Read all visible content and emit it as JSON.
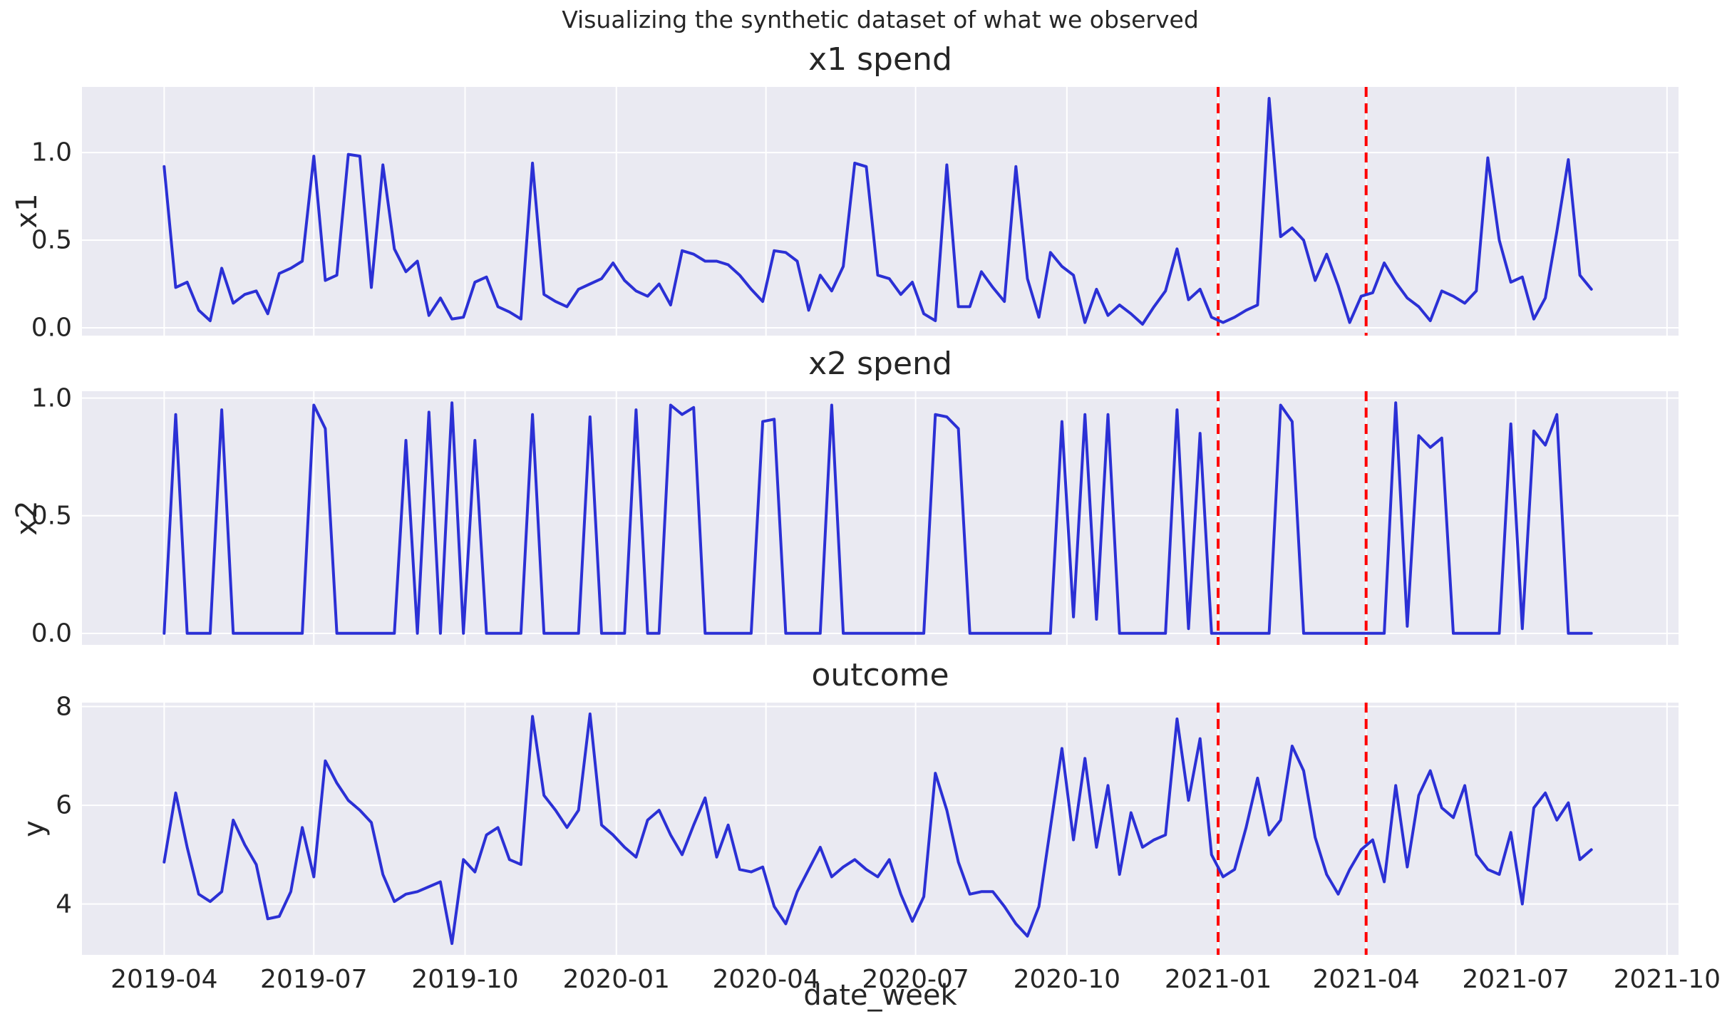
{
  "figure": {
    "suptitle": "Visualizing the synthetic dataset of what we observed"
  },
  "style": {
    "axes_background": "#EAEAF2",
    "grid_color": "#FFFFFF",
    "series_color": "#2B30D5",
    "vline_color": "#FF0000",
    "text_color": "#262626"
  },
  "x_axis": {
    "label": "date_week",
    "start_date": "2019-04-01",
    "interval_days": 7,
    "xlim": [
      "2019-02-10",
      "2021-10-08"
    ],
    "ticks": [
      {
        "date": "2019-04-01",
        "label": "2019-04"
      },
      {
        "date": "2019-07-01",
        "label": "2019-07"
      },
      {
        "date": "2019-10-01",
        "label": "2019-10"
      },
      {
        "date": "2020-01-01",
        "label": "2020-01"
      },
      {
        "date": "2020-04-01",
        "label": "2020-04"
      },
      {
        "date": "2020-07-01",
        "label": "2020-07"
      },
      {
        "date": "2020-10-01",
        "label": "2020-10"
      },
      {
        "date": "2021-01-01",
        "label": "2021-01"
      },
      {
        "date": "2021-04-01",
        "label": "2021-04"
      },
      {
        "date": "2021-07-01",
        "label": "2021-07"
      },
      {
        "date": "2021-10-01",
        "label": "2021-10"
      }
    ]
  },
  "annotations": {
    "vlines": [
      {
        "date": "2021-01-01",
        "style": "dashed"
      },
      {
        "date": "2021-04-01",
        "style": "dashed"
      }
    ]
  },
  "chart_data": [
    {
      "type": "line",
      "title": "x1 spend",
      "ylabel": "x1",
      "ylim": [
        -0.045,
        1.375
      ],
      "yticks": [
        {
          "v": 0.0,
          "label": "0.0"
        },
        {
          "v": 0.5,
          "label": "0.5"
        },
        {
          "v": 1.0,
          "label": "1.0"
        }
      ],
      "x_weekly_start": "2019-04-01",
      "values": [
        0.92,
        0.23,
        0.26,
        0.1,
        0.04,
        0.34,
        0.14,
        0.19,
        0.21,
        0.08,
        0.31,
        0.34,
        0.38,
        0.98,
        0.27,
        0.3,
        0.99,
        0.98,
        0.23,
        0.93,
        0.45,
        0.32,
        0.38,
        0.07,
        0.17,
        0.05,
        0.06,
        0.26,
        0.29,
        0.12,
        0.09,
        0.05,
        0.94,
        0.19,
        0.15,
        0.12,
        0.22,
        0.25,
        0.28,
        0.37,
        0.27,
        0.21,
        0.18,
        0.25,
        0.13,
        0.44,
        0.42,
        0.38,
        0.38,
        0.36,
        0.3,
        0.22,
        0.15,
        0.44,
        0.43,
        0.38,
        0.1,
        0.3,
        0.21,
        0.35,
        0.94,
        0.92,
        0.3,
        0.28,
        0.19,
        0.26,
        0.08,
        0.04,
        0.93,
        0.12,
        0.12,
        0.32,
        0.23,
        0.15,
        0.92,
        0.28,
        0.06,
        0.43,
        0.35,
        0.3,
        0.03,
        0.22,
        0.07,
        0.13,
        0.08,
        0.02,
        0.12,
        0.21,
        0.45,
        0.16,
        0.22,
        0.06,
        0.03,
        0.06,
        0.1,
        0.13,
        1.31,
        0.52,
        0.57,
        0.5,
        0.27,
        0.42,
        0.24,
        0.03,
        0.18,
        0.2,
        0.37,
        0.26,
        0.17,
        0.12,
        0.04,
        0.21,
        0.18,
        0.14,
        0.21,
        0.97,
        0.5,
        0.26,
        0.29,
        0.05,
        0.17,
        0.55,
        0.96,
        0.3,
        0.22
      ]
    },
    {
      "type": "line",
      "title": "x2 spend",
      "ylabel": "x2",
      "ylim": [
        -0.049,
        1.029
      ],
      "yticks": [
        {
          "v": 0.0,
          "label": "0.0"
        },
        {
          "v": 0.5,
          "label": "0.5"
        },
        {
          "v": 1.0,
          "label": "1.0"
        }
      ],
      "x_weekly_start": "2019-04-01",
      "values": [
        0,
        0.93,
        0,
        0,
        0,
        0.95,
        0,
        0,
        0,
        0,
        0,
        0,
        0,
        0.97,
        0.87,
        0,
        0,
        0,
        0,
        0,
        0,
        0.82,
        0,
        0.94,
        0,
        0.98,
        0,
        0.82,
        0,
        0,
        0,
        0,
        0.93,
        0,
        0,
        0,
        0,
        0.92,
        0,
        0,
        0,
        0.95,
        0,
        0,
        0.97,
        0.93,
        0.96,
        0,
        0,
        0,
        0,
        0,
        0.9,
        0.91,
        0,
        0,
        0,
        0,
        0.97,
        0,
        0,
        0,
        0,
        0,
        0,
        0,
        0,
        0.93,
        0.92,
        0.87,
        0,
        0,
        0,
        0,
        0,
        0,
        0,
        0,
        0.9,
        0.07,
        0.93,
        0.06,
        0.93,
        0,
        0,
        0,
        0,
        0,
        0.95,
        0.02,
        0.85,
        0,
        0,
        0,
        0,
        0,
        0,
        0.97,
        0.9,
        0,
        0,
        0,
        0,
        0,
        0,
        0,
        0,
        0.98,
        0.03,
        0.84,
        0.79,
        0.83,
        0,
        0,
        0,
        0,
        0,
        0.89,
        0.02,
        0.86,
        0.8,
        0.93,
        0,
        0,
        0
      ]
    },
    {
      "type": "line",
      "title": "outcome",
      "ylabel": "y",
      "ylim": [
        2.97,
        8.08
      ],
      "yticks": [
        {
          "v": 4,
          "label": "4"
        },
        {
          "v": 6,
          "label": "6"
        },
        {
          "v": 8,
          "label": "8"
        }
      ],
      "x_weekly_start": "2019-04-01",
      "values": [
        4.85,
        6.25,
        5.15,
        4.2,
        4.05,
        4.25,
        5.7,
        5.2,
        4.8,
        3.7,
        3.75,
        4.25,
        5.55,
        4.55,
        6.9,
        6.45,
        6.1,
        5.9,
        5.65,
        4.6,
        4.05,
        4.2,
        4.25,
        4.35,
        4.45,
        3.2,
        4.9,
        4.65,
        5.4,
        5.55,
        4.9,
        4.8,
        7.8,
        6.2,
        5.9,
        5.55,
        5.9,
        7.85,
        5.6,
        5.4,
        5.15,
        4.95,
        5.7,
        5.9,
        5.4,
        5.0,
        5.6,
        6.15,
        4.95,
        5.6,
        4.7,
        4.65,
        4.75,
        3.95,
        3.6,
        4.25,
        4.7,
        5.15,
        4.55,
        4.75,
        4.9,
        4.7,
        4.55,
        4.9,
        4.2,
        3.65,
        4.15,
        6.65,
        5.9,
        4.85,
        4.2,
        4.25,
        4.25,
        3.95,
        3.6,
        3.35,
        3.95,
        5.55,
        7.15,
        5.3,
        6.95,
        5.15,
        6.4,
        4.6,
        5.85,
        5.15,
        5.3,
        5.4,
        7.75,
        6.1,
        7.35,
        5.0,
        4.55,
        4.7,
        5.55,
        6.55,
        5.4,
        5.7,
        7.2,
        6.7,
        5.35,
        4.6,
        4.2,
        4.7,
        5.1,
        5.3,
        4.45,
        6.4,
        4.75,
        6.2,
        6.7,
        5.95,
        5.75,
        6.4,
        5.0,
        4.7,
        4.6,
        5.45,
        4.0,
        5.95,
        6.25,
        5.7,
        6.05,
        4.9,
        5.1
      ]
    }
  ]
}
